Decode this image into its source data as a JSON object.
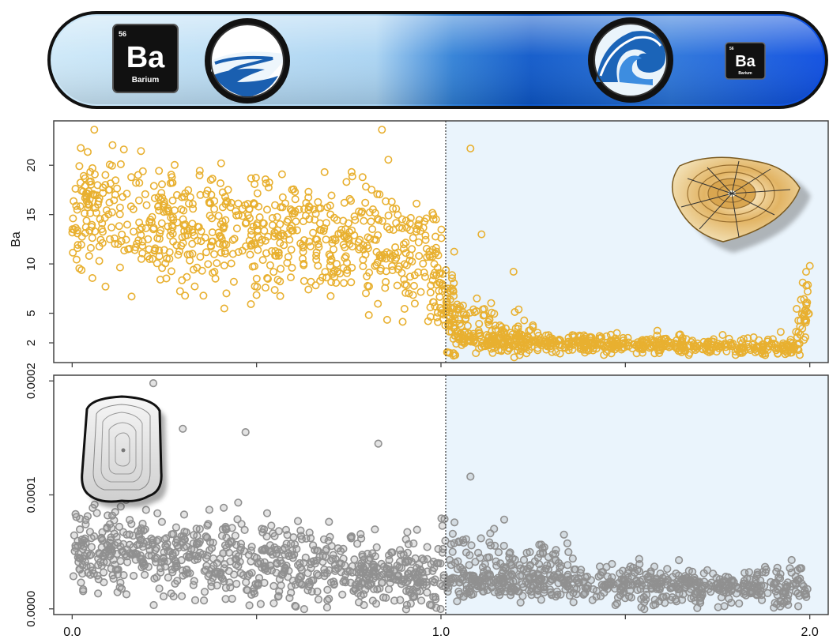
{
  "banner": {
    "element_tile_large": {
      "number": "56",
      "symbol": "Ba",
      "name": "Barium"
    },
    "element_tile_small": {
      "number": "56",
      "symbol": "Ba",
      "name": "Barium"
    },
    "colors": {
      "left": "#c9e6f7",
      "right": "#0a4be0",
      "border": "#111111"
    },
    "icons": [
      "river-estuary-icon",
      "ocean-wave-icon"
    ]
  },
  "chart_data": [
    {
      "type": "scatter",
      "panel": "top",
      "ylabel": "Ba",
      "xlabel": "",
      "xlim": [
        -0.05,
        2.05
      ],
      "ylim": [
        0,
        24.5
      ],
      "yticks": [
        2,
        5,
        10,
        15,
        20
      ],
      "ytick_labels": [
        "2",
        "5",
        "10",
        "15",
        "20"
      ],
      "xticks": [
        0.0,
        0.5,
        1.0,
        1.5,
        2.0
      ],
      "marker_color": "#e8b030",
      "divider_x": 1.0,
      "shaded_region": [
        1.0,
        2.05
      ],
      "shade_color": "#eaf4fc",
      "grid": false,
      "icon": "otolith-ring-icon",
      "seed": 11,
      "segments": [
        {
          "x": [
            0.0,
            0.98
          ],
          "n": 720,
          "y_mean_start": 15.5,
          "y_mean_end": 11.0,
          "y_sd": 3.2
        },
        {
          "x": [
            0.98,
            1.04
          ],
          "n": 70,
          "y_mean_start": 10.5,
          "y_mean_end": 3.0,
          "y_sd": 2.5
        },
        {
          "x": [
            1.0,
            1.25
          ],
          "n": 110,
          "y_mean_start": 5.5,
          "y_mean_end": 2.0,
          "y_sd": 1.4
        },
        {
          "x": [
            1.04,
            1.96
          ],
          "n": 520,
          "y_mean_start": 2.2,
          "y_mean_end": 1.5,
          "y_sd": 0.45
        },
        {
          "x": [
            1.96,
            2.0
          ],
          "n": 40,
          "y_mean_start": 2.0,
          "y_mean_end": 6.0,
          "y_sd": 1.6
        }
      ],
      "outliers": [
        {
          "x": 0.33,
          "y": 24.5
        },
        {
          "x": 0.06,
          "y": 23.6
        },
        {
          "x": 0.84,
          "y": 23.6
        },
        {
          "x": 1.08,
          "y": 21.7
        },
        {
          "x": 1.11,
          "y": 13.0
        },
        {
          "x": 2.0,
          "y": 9.8
        },
        {
          "x": 1.99,
          "y": 9.2
        },
        {
          "x": 0.14,
          "y": 21.6
        }
      ]
    },
    {
      "type": "scatter",
      "panel": "bottom",
      "ylabel": "",
      "xlabel": "",
      "xlim": [
        -0.05,
        2.05
      ],
      "ylim": [
        -5e-06,
        0.000205
      ],
      "yticks": [
        0.0,
        0.0001,
        0.0002
      ],
      "ytick_labels": [
        "0.0000",
        "0.0001",
        "0.0002"
      ],
      "xticks": [
        0.0,
        0.5,
        1.0,
        1.5,
        2.0
      ],
      "xtick_labels": [
        "0.0",
        "",
        "1.0",
        "",
        "2.0"
      ],
      "marker_color": "#909090",
      "divider_x": 1.0,
      "shaded_region": [
        1.0,
        2.05
      ],
      "shade_color": "#eaf4fc",
      "grid": false,
      "icon": "otolith-shell-icon",
      "seed": 29,
      "segments": [
        {
          "x": [
            0.0,
            1.0
          ],
          "n": 760,
          "y_mean_start": 5.5e-05,
          "y_mean_end": 2.8e-05,
          "y_sd": 1.7e-05
        },
        {
          "x": [
            1.0,
            1.35
          ],
          "n": 90,
          "y_mean_start": 6e-05,
          "y_mean_end": 3.5e-05,
          "y_sd": 1.2e-05
        },
        {
          "x": [
            1.0,
            2.0
          ],
          "n": 600,
          "y_mean_start": 2.4e-05,
          "y_mean_end": 1.8e-05,
          "y_sd": 8e-06
        }
      ],
      "outliers": [
        {
          "x": 0.22,
          "y": 0.000198
        },
        {
          "x": 0.3,
          "y": 0.000158
        },
        {
          "x": 0.47,
          "y": 0.000155
        },
        {
          "x": 0.83,
          "y": 0.000145
        },
        {
          "x": 1.08,
          "y": 0.000116
        },
        {
          "x": 0.05,
          "y": 3.7e-05
        }
      ]
    }
  ]
}
